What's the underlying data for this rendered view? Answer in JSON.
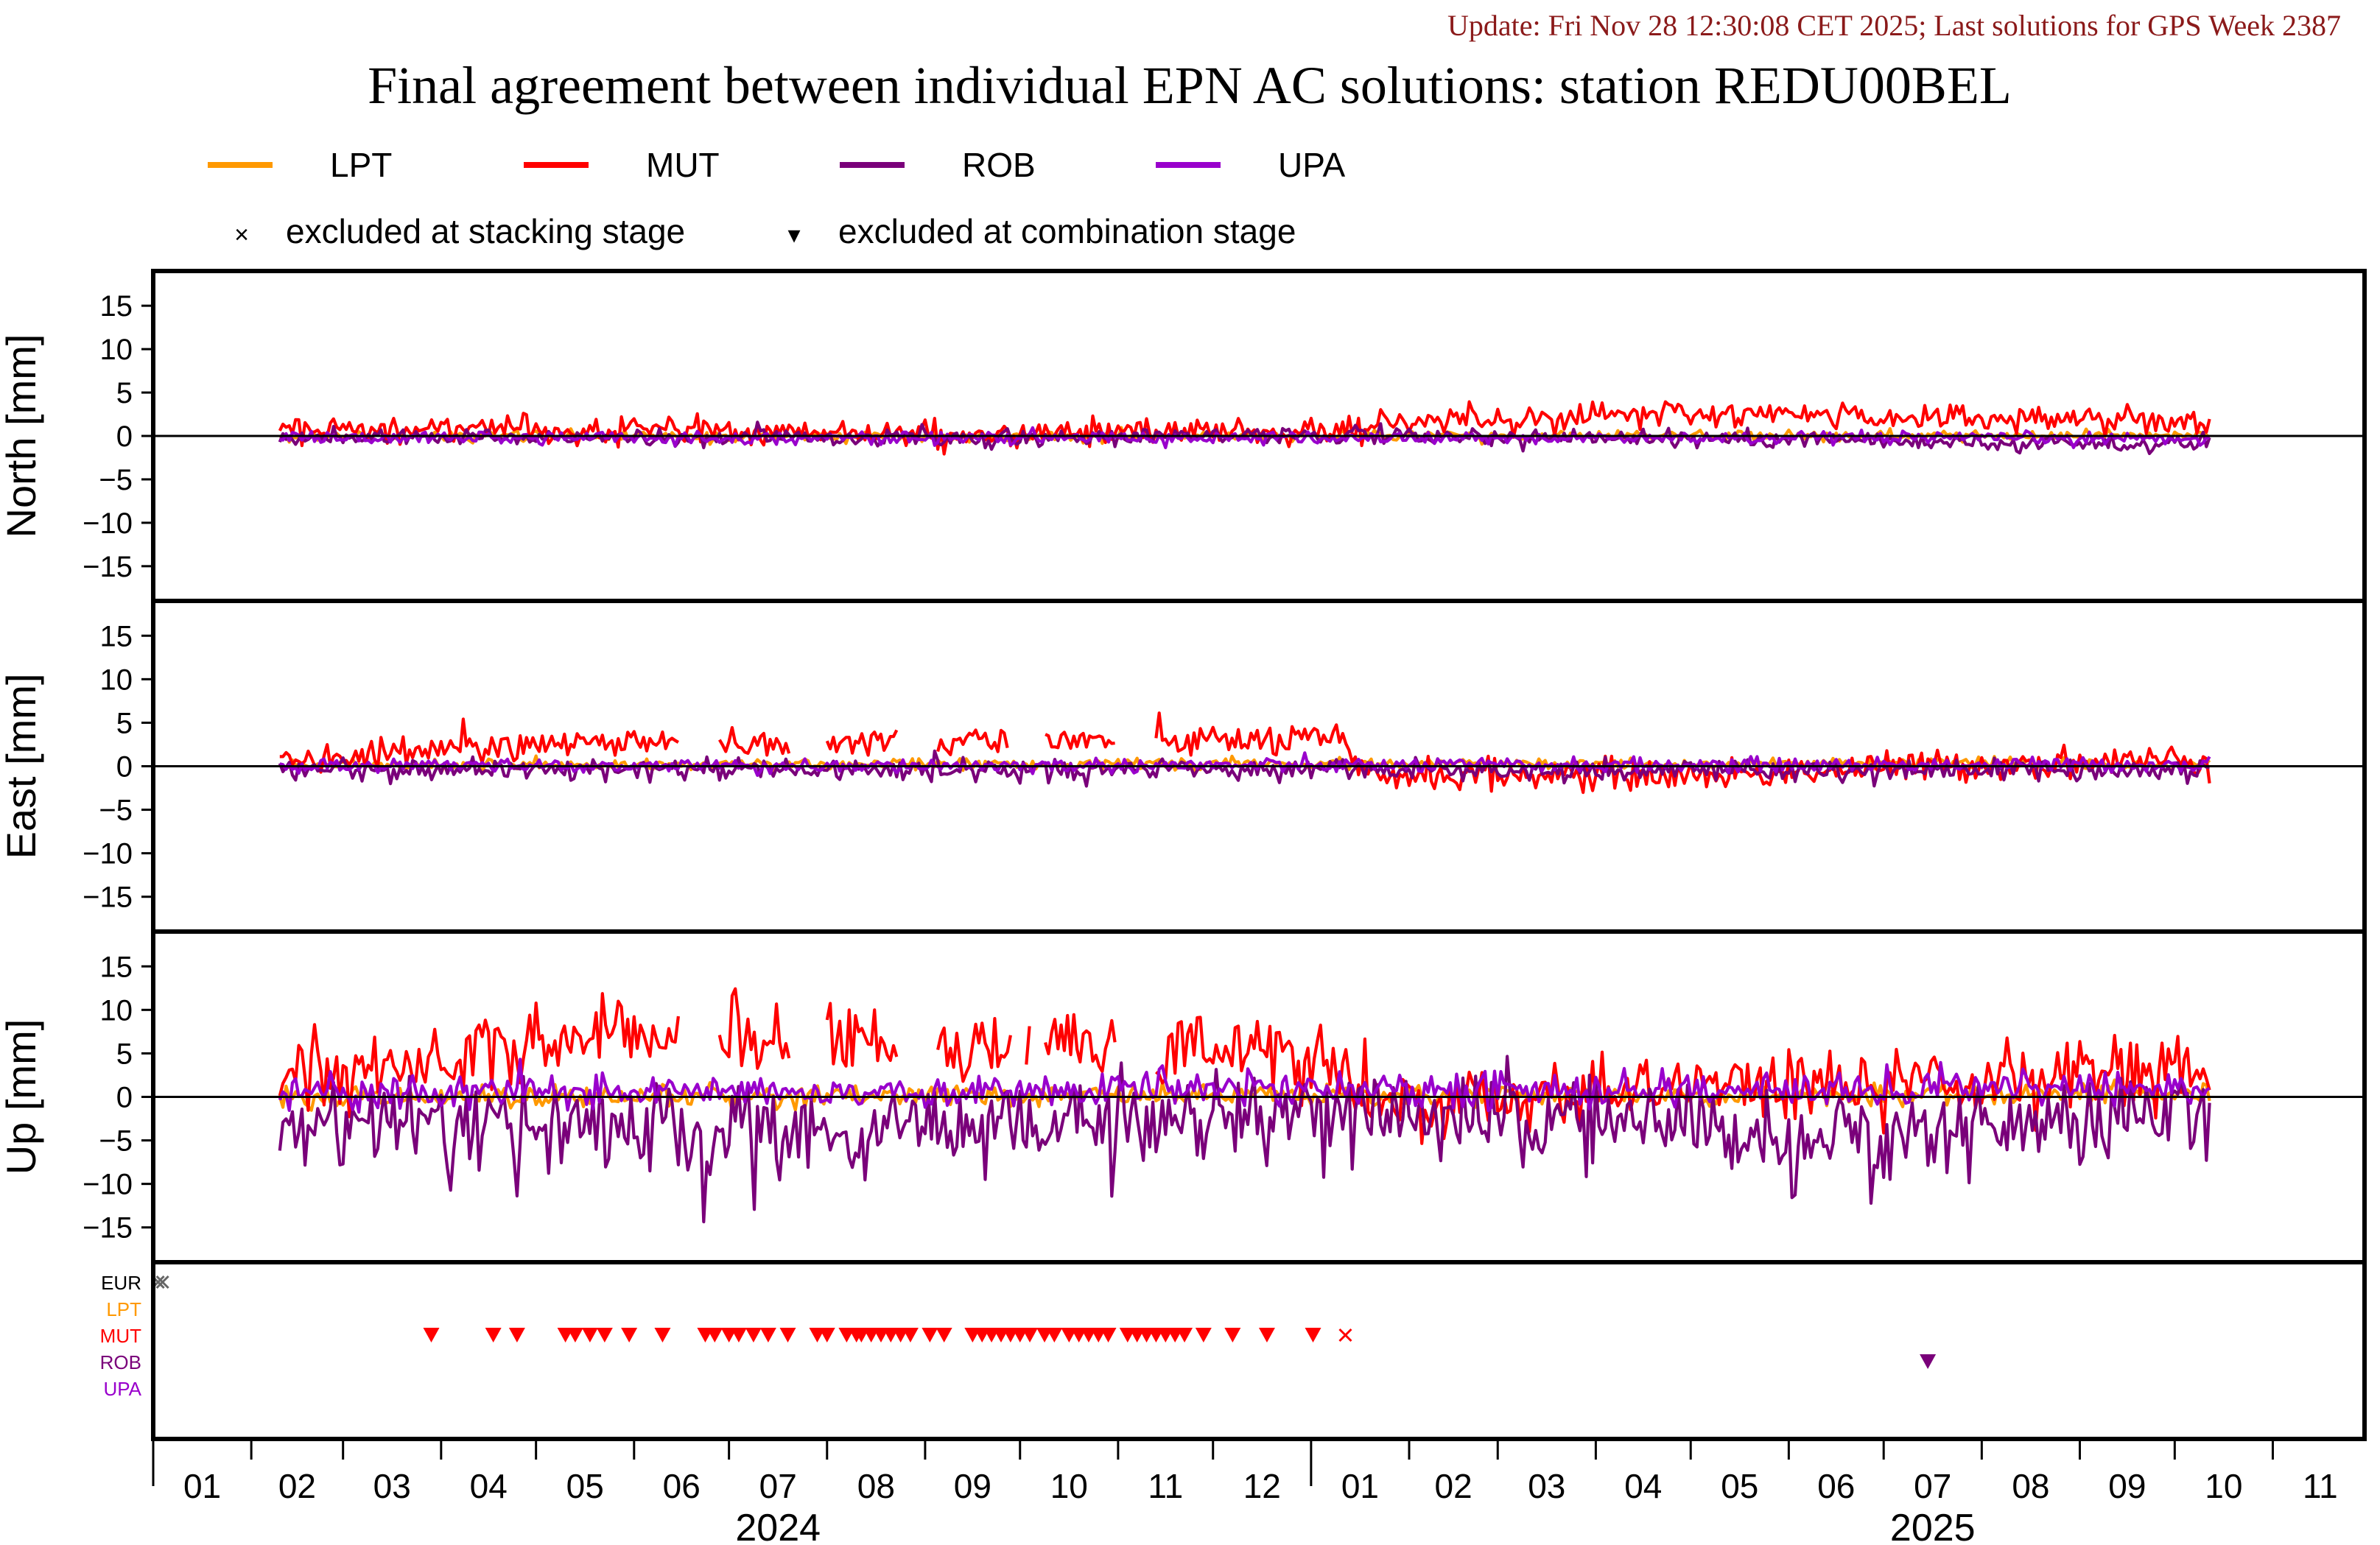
{
  "header": {
    "update_text": "Update: Fri Nov 28 12:30:08 CET 2025; Last solutions for GPS Week 2387",
    "title": "Final agreement between individual EPN AC solutions: station REDU00BEL"
  },
  "legend": {
    "series": [
      {
        "name": "LPT",
        "color": "#ff9900"
      },
      {
        "name": "MUT",
        "color": "#ff0000"
      },
      {
        "name": "ROB",
        "color": "#7a007a"
      },
      {
        "name": "UPA",
        "color": "#9900cc"
      }
    ],
    "excluded_stacking_symbol": "×",
    "excluded_stacking_label": "excluded at stacking stage",
    "excluded_combination_symbol": "▾",
    "excluded_combination_label": "excluded at combination stage"
  },
  "chart_data": {
    "type": "line",
    "x_axis": {
      "start": "2024-01-01",
      "end": "2025-11-30",
      "month_labels": [
        "01",
        "02",
        "03",
        "04",
        "05",
        "06",
        "07",
        "08",
        "09",
        "10",
        "11",
        "12",
        "01",
        "02",
        "03",
        "04",
        "05",
        "06",
        "07",
        "08",
        "09",
        "10",
        "11"
      ],
      "year_labels": [
        {
          "label": "2024",
          "month_index": 6
        },
        {
          "label": "2025",
          "month_index": 18
        }
      ]
    },
    "data_start": "2024-02-10",
    "data_end": "2025-10-12",
    "panels": [
      {
        "ylabel": "North [mm]",
        "ylim": [
          -19,
          19
        ],
        "ticks": [
          15,
          10,
          5,
          0,
          -5,
          -10,
          -15
        ],
        "series": [
          {
            "name": "LPT",
            "color": "#ff9900",
            "trend": [
              [
                0,
                0
              ],
              [
                1,
                0
              ]
            ],
            "noise": 0.3
          },
          {
            "name": "MUT",
            "color": "#ff0000",
            "trend": [
              [
                0,
                1.0
              ],
              [
                0.3,
                0.3
              ],
              [
                0.55,
                0.6
              ],
              [
                0.6,
                2.0
              ],
              [
                0.75,
                2.5
              ],
              [
                1,
                1.8
              ]
            ],
            "noise": 0.8
          },
          {
            "name": "ROB",
            "color": "#7a007a",
            "trend": [
              [
                0,
                -0.3
              ],
              [
                0.6,
                0
              ],
              [
                1,
                -1.0
              ]
            ],
            "noise": 0.5
          },
          {
            "name": "UPA",
            "color": "#9900cc",
            "trend": [
              [
                0,
                -0.2
              ],
              [
                1,
                -0.3
              ]
            ],
            "noise": 0.35
          }
        ]
      },
      {
        "ylabel": "East [mm]",
        "ylim": [
          -19,
          19
        ],
        "ticks": [
          15,
          10,
          5,
          0,
          -5,
          -10,
          -15
        ],
        "series": [
          {
            "name": "LPT",
            "color": "#ff9900",
            "trend": [
              [
                0,
                0.2
              ],
              [
                1,
                0.3
              ]
            ],
            "noise": 0.3
          },
          {
            "name": "MUT",
            "color": "#ff0000",
            "trend": [
              [
                0,
                0.5
              ],
              [
                0.1,
                2.5
              ],
              [
                0.55,
                3.0
              ],
              [
                0.56,
                -1.0
              ],
              [
                0.75,
                -1.0
              ],
              [
                0.85,
                0
              ],
              [
                1,
                0.8
              ]
            ],
            "noise": 0.9
          },
          {
            "name": "ROB",
            "color": "#7a007a",
            "trend": [
              [
                0,
                -0.3
              ],
              [
                1,
                -0.5
              ]
            ],
            "noise": 0.6
          },
          {
            "name": "UPA",
            "color": "#9900cc",
            "trend": [
              [
                0,
                0
              ],
              [
                1,
                0.2
              ]
            ],
            "noise": 0.4
          }
        ]
      },
      {
        "ylabel": "Up [mm]",
        "ylim": [
          -19,
          19
        ],
        "ticks": [
          15,
          10,
          5,
          0,
          -5,
          -10,
          -15
        ],
        "series": [
          {
            "name": "LPT",
            "color": "#ff9900",
            "trend": [
              [
                0,
                0
              ],
              [
                1,
                0.3
              ]
            ],
            "noise": 0.6
          },
          {
            "name": "MUT",
            "color": "#ff0000",
            "trend": [
              [
                0,
                2.0
              ],
              [
                0.15,
                7.0
              ],
              [
                0.45,
                6.0
              ],
              [
                0.55,
                4.5
              ],
              [
                0.56,
                -1.0
              ],
              [
                0.75,
                1.5
              ],
              [
                1,
                2.5
              ]
            ],
            "noise": 2.2
          },
          {
            "name": "ROB",
            "color": "#7a007a",
            "trend": [
              [
                0,
                -3.0
              ],
              [
                0.3,
                -4.0
              ],
              [
                0.55,
                -1.5
              ],
              [
                0.8,
                -4.5
              ],
              [
                1,
                -2.0
              ]
            ],
            "noise": 2.4
          },
          {
            "name": "UPA",
            "color": "#9900cc",
            "trend": [
              [
                0,
                0.5
              ],
              [
                1,
                1.0
              ]
            ],
            "noise": 1.0
          }
        ]
      }
    ],
    "exclusion_panel": {
      "rows": [
        {
          "name": "EUR",
          "color": "#000000"
        },
        {
          "name": "LPT",
          "color": "#ff9900"
        },
        {
          "name": "MUT",
          "color": "#ff0000"
        },
        {
          "name": "ROB",
          "color": "#7a007a"
        },
        {
          "name": "UPA",
          "color": "#9900cc"
        }
      ],
      "stacking_excluded": [
        {
          "row": "EUR",
          "month_pos": 0.05
        },
        {
          "row": "MUT",
          "month_pos": 12.35
        }
      ],
      "combination_excluded": [
        {
          "row": "MUT",
          "month_pos": [
            2.9,
            3.55,
            3.8,
            4.3,
            4.4,
            4.55,
            4.7,
            4.95,
            5.3,
            5.75,
            5.85,
            6.0,
            6.1,
            6.25,
            6.4,
            6.6,
            6.9,
            7.0,
            7.2,
            7.3,
            7.35,
            7.45,
            7.55,
            7.65,
            7.75,
            7.85,
            8.05,
            8.2,
            8.5,
            8.6,
            8.7,
            8.8,
            8.9,
            9.0,
            9.1,
            9.25,
            9.35,
            9.5,
            9.6,
            9.7,
            9.8,
            9.9,
            10.1,
            10.2,
            10.3,
            10.4,
            10.5,
            10.6,
            10.7,
            10.9,
            11.2,
            11.55,
            12.02
          ]
        },
        {
          "row": "ROB",
          "month_pos": [
            18.45
          ]
        }
      ]
    }
  }
}
